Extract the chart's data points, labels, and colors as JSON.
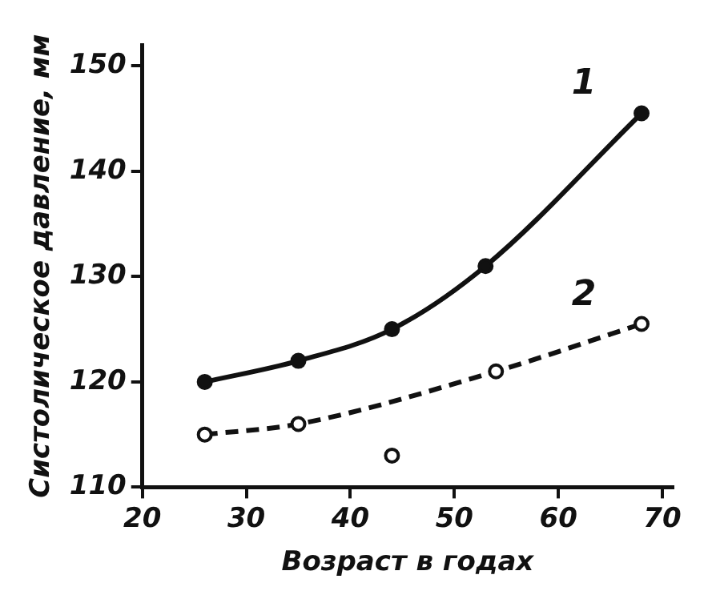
{
  "chart_data": {
    "type": "line",
    "xlabel": "Возраст в годах",
    "ylabel": "Систолическое давление, мм",
    "xlim": [
      20,
      71
    ],
    "ylim": [
      110,
      152
    ],
    "xticks": [
      20,
      30,
      40,
      50,
      60,
      70
    ],
    "yticks": [
      110,
      120,
      130,
      140,
      150
    ],
    "grid": false,
    "legend": false,
    "series": [
      {
        "name": "1",
        "color": "#111111",
        "x": [
          26,
          35,
          44,
          53,
          68
        ],
        "values": [
          120,
          122,
          125,
          131,
          145.5
        ],
        "marker": "circle",
        "line_style": "solid"
      },
      {
        "name": "2",
        "color": "#111111",
        "x": [
          26,
          35,
          54,
          68
        ],
        "values": [
          115,
          116,
          121,
          125.5
        ],
        "marker": "circle",
        "line_style": "dashed"
      },
      {
        "type": "scatter",
        "color": "#111111",
        "x": [
          44
        ],
        "values": [
          113
        ],
        "marker": "circle"
      }
    ]
  }
}
